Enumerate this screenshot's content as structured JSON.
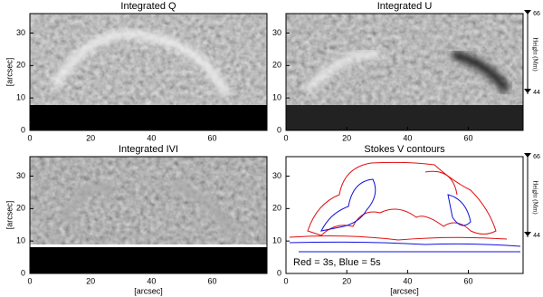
{
  "chart_data": [
    {
      "type": "image",
      "title": "Integrated Q",
      "xlim": [
        0,
        78
      ],
      "xticks": [
        0,
        20,
        40,
        60
      ],
      "ylim": [
        0,
        36
      ],
      "yticks": [
        0,
        10,
        20,
        30
      ],
      "ylabel": "[arcsec]"
    },
    {
      "type": "image",
      "title": "Integrated U",
      "xlim": [
        0,
        78
      ],
      "xticks": [
        0,
        20,
        40,
        60
      ],
      "ylim": [
        0,
        36
      ],
      "yticks": [
        0,
        10,
        20,
        30
      ],
      "y2label": "Height (Mm)",
      "y2lim": [
        33.4,
        66
      ],
      "y2ticks": [
        44,
        66
      ]
    },
    {
      "type": "image",
      "title": "Integrated IVI",
      "xlim": [
        0,
        78
      ],
      "xticks": [
        0,
        20,
        40,
        60
      ],
      "ylim": [
        0,
        36
      ],
      "yticks": [
        0,
        10,
        20,
        30
      ],
      "xlabel": "[arcsec]",
      "ylabel": "[arcsec]"
    },
    {
      "type": "contour",
      "title": "Stokes V contours",
      "xlim": [
        0,
        78
      ],
      "xticks": [
        0,
        20,
        40,
        60
      ],
      "ylim": [
        0,
        36
      ],
      "yticks": [
        0,
        10,
        20,
        30
      ],
      "xlabel": "[arcsec]",
      "y2label": "Height (Mm)",
      "y2lim": [
        33.4,
        66
      ],
      "y2ticks": [
        44,
        66
      ],
      "annotation": "Red = 3s, Blue = 5s",
      "contour_colors": [
        "#e01010",
        "#1010e0"
      ]
    }
  ]
}
